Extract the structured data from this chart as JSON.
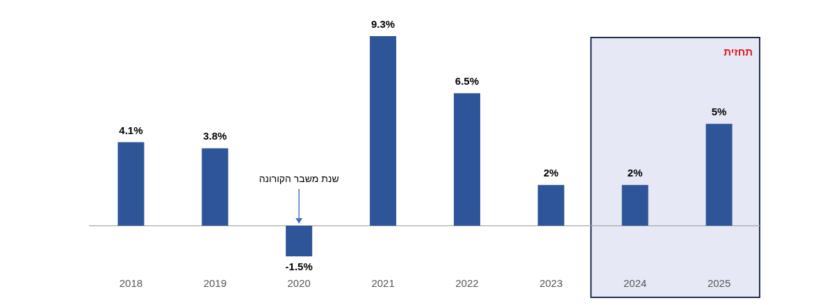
{
  "chart_data": {
    "type": "bar",
    "categories": [
      "2018",
      "2019",
      "2020",
      "2021",
      "2022",
      "2023",
      "2024",
      "2025"
    ],
    "values": [
      4.1,
      3.8,
      -1.5,
      9.3,
      6.5,
      2,
      2,
      5
    ],
    "value_labels": [
      "4.1%",
      "3.8%",
      "-1.5%",
      "9.3%",
      "6.5%",
      "2%",
      "2%",
      "5%"
    ],
    "color": "#2e5597",
    "bands": [
      {
        "axis": "x",
        "from": "2024",
        "to": "2025",
        "label": "תחזית",
        "color": "#e6e9f5"
      }
    ],
    "annotations": [
      "שנת משבר הקורונה"
    ]
  }
}
